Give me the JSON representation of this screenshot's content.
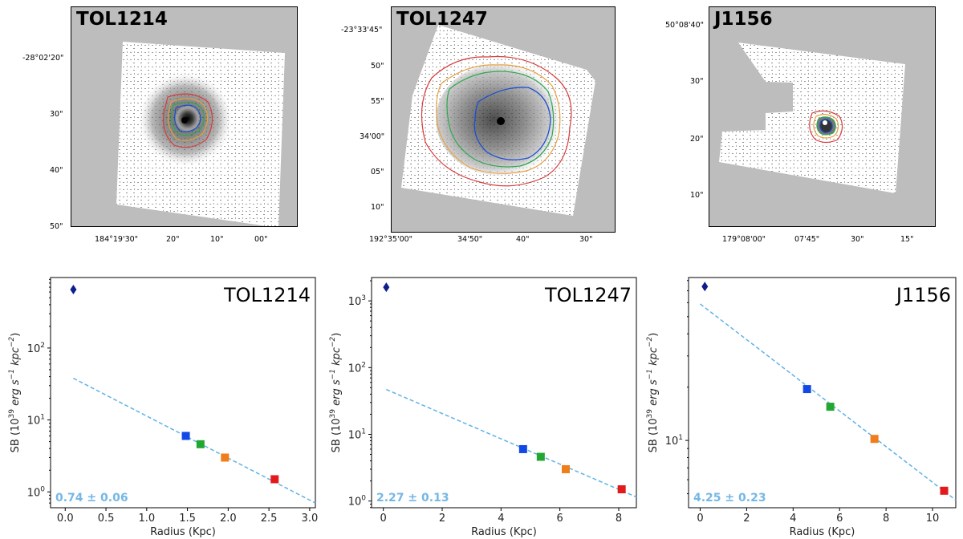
{
  "colors": {
    "fit_line": "#5fb2e6",
    "slope_text": "#75b7e6",
    "diamond": "#0d1f8c",
    "sq_blue": "#1248e6",
    "sq_green": "#22a832",
    "sq_orange": "#f07d1a",
    "sq_red": "#e31a1c",
    "contour_red": "#d93b3b",
    "contour_orange": "#e8a041",
    "contour_green": "#2fa84f",
    "contour_blue": "#1a4fd1",
    "image_bg": "#bdbdbd"
  },
  "images": [
    {
      "label": "TOL1214",
      "ra_ticks": [
        "184°19'30\"",
        "20\"",
        "10\"",
        "00\""
      ],
      "dec_ticks": [
        "-28°02'20\"",
        "30\"",
        "40\"",
        "50\""
      ]
    },
    {
      "label": "TOL1247",
      "ra_ticks": [
        "192°35'00\"",
        "34'50\"",
        "40\"",
        "30\""
      ],
      "dec_ticks": [
        "-23°33'45\"",
        "50\"",
        "55\"",
        "34'00\"",
        "05\"",
        "10\""
      ]
    },
    {
      "label": "J1156",
      "ra_ticks": [
        "179°08'00\"",
        "07'45\"",
        "30\"",
        "15\""
      ],
      "dec_ticks": [
        "50°08'40\"",
        "30\"",
        "20\"",
        "10\""
      ]
    }
  ],
  "chart_data": [
    {
      "type": "scatter",
      "title": "TOL1214",
      "xlabel": "Radius (Kpc)",
      "ylabel": "SB (10^39 erg s^-1 kpc^-2)",
      "yscale": "log",
      "xlim": [
        -0.18,
        3.07
      ],
      "ylim_log10": [
        -0.22,
        2.98
      ],
      "xticks": [
        0.0,
        0.5,
        1.0,
        1.5,
        2.0,
        2.5,
        3.0
      ],
      "xtick_labels": [
        "0.0",
        "0.5",
        "1.0",
        "1.5",
        "2.0",
        "2.5",
        "3.0"
      ],
      "yticks": [
        1,
        10,
        100
      ],
      "central_point": {
        "x": 0.1,
        "y": 650,
        "marker": "diamond"
      },
      "points": [
        {
          "x": 1.48,
          "y": 6.0,
          "color": "blue"
        },
        {
          "x": 1.66,
          "y": 4.6,
          "color": "green"
        },
        {
          "x": 1.96,
          "y": 3.0,
          "color": "orange"
        },
        {
          "x": 2.57,
          "y": 1.5,
          "color": "red"
        }
      ],
      "fit": {
        "x": [
          0.1,
          3.07
        ],
        "y": [
          38,
          0.7
        ],
        "style": "dashed"
      },
      "slope_text": "0.74 ± 0.06",
      "legend": "TOL1214"
    },
    {
      "type": "scatter",
      "title": "TOL1247",
      "xlabel": "Radius (Kpc)",
      "ylabel": "SB (10^39 erg s^-1 kpc^-2)",
      "yscale": "log",
      "xlim": [
        -0.4,
        8.6
      ],
      "ylim_log10": [
        -0.1,
        3.35
      ],
      "xticks": [
        0,
        2,
        4,
        6,
        8
      ],
      "xtick_labels": [
        "0",
        "2",
        "4",
        "6",
        "8"
      ],
      "yticks": [
        1,
        10,
        100,
        1000
      ],
      "central_point": {
        "x": 0.1,
        "y": 1600,
        "marker": "diamond"
      },
      "points": [
        {
          "x": 4.75,
          "y": 6.0,
          "color": "blue"
        },
        {
          "x": 5.35,
          "y": 4.6,
          "color": "green"
        },
        {
          "x": 6.2,
          "y": 3.0,
          "color": "orange"
        },
        {
          "x": 8.1,
          "y": 1.5,
          "color": "red"
        }
      ],
      "fit": {
        "x": [
          0.1,
          8.6
        ],
        "y": [
          47,
          1.15
        ],
        "style": "dashed"
      },
      "slope_text": "2.27 ± 0.13",
      "legend": "TOL1247"
    },
    {
      "type": "scatter",
      "title": "J1156",
      "xlabel": "Radius (Kpc)",
      "ylabel": "SB (10^39 erg s^-1 kpc^-2)",
      "yscale": "log",
      "xlim": [
        -0.5,
        11.0
      ],
      "ylim_log10": [
        0.62,
        1.92
      ],
      "xticks": [
        0,
        2,
        4,
        6,
        8,
        10
      ],
      "xtick_labels": [
        "0",
        "2",
        "4",
        "6",
        "8",
        "10"
      ],
      "yticks": [
        10
      ],
      "central_point": {
        "x": 0.2,
        "y": 74,
        "marker": "diamond"
      },
      "points": [
        {
          "x": 4.6,
          "y": 19.5,
          "color": "blue"
        },
        {
          "x": 5.6,
          "y": 15.5,
          "color": "green"
        },
        {
          "x": 7.5,
          "y": 10.2,
          "color": "orange"
        },
        {
          "x": 10.5,
          "y": 5.2,
          "color": "red"
        }
      ],
      "fit": {
        "x": [
          0.0,
          11.0
        ],
        "y": [
          59,
          4.6
        ],
        "style": "dashed"
      },
      "slope_text": "4.25 ± 0.23",
      "legend": "J1156"
    }
  ]
}
